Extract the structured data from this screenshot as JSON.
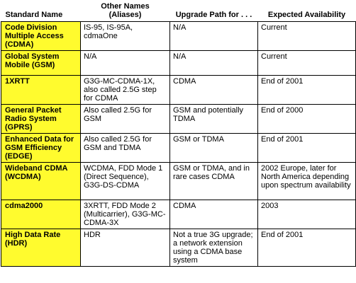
{
  "headers": {
    "standard_name": "Standard Name",
    "other_names_line1": "Other Names",
    "other_names_line2": "(Aliases)",
    "upgrade_path": "Upgrade Path for . . .",
    "expected_availability": "Expected Availability"
  },
  "rows": [
    {
      "name": "Code Division Multiple Access (CDMA)",
      "aliases": "IS-95, IS-95A, cdmaOne",
      "upgrade": "N/A",
      "availability": "Current"
    },
    {
      "name": "Global System Mobile (GSM)",
      "aliases": "N/A",
      "upgrade": "N/A",
      "availability": "Current"
    },
    {
      "name": "1XRTT",
      "aliases": "G3G-MC-CDMA-1X, also called 2.5G step for CDMA",
      "upgrade": "CDMA",
      "availability": "End of 2001"
    },
    {
      "name": "General Packet Radio System (GPRS)",
      "aliases": "Also called 2.5G for GSM",
      "upgrade": "GSM and potentially TDMA",
      "availability": "End of 2000"
    },
    {
      "name": "Enhanced Data for GSM Efficiency (EDGE)",
      "aliases": "Also called 2.5G for GSM and TDMA",
      "upgrade": "GSM or TDMA",
      "availability": "End of 2001"
    },
    {
      "name": "Wideband CDMA (WCDMA)",
      "aliases": "WCDMA, FDD Mode 1 (Direct Sequence), G3G-DS-CDMA",
      "upgrade": "GSM or TDMA, and in rare cases CDMA",
      "availability": "2002 Europe, later for North America depending upon spectrum availability"
    },
    {
      "name": "cdma2000",
      "aliases": "3XRTT, FDD Mode 2 (Multicarrier), G3G-MC-CDMA-3X",
      "upgrade": "CDMA",
      "availability": "2003"
    },
    {
      "name": "High Data Rate (HDR)",
      "aliases": "HDR",
      "upgrade": "Not a true 3G upgrade; a network extension using a CDMA base system",
      "availability": "End of 2001"
    }
  ],
  "colors": {
    "highlight": "#fffb2e",
    "border": "#000000"
  }
}
